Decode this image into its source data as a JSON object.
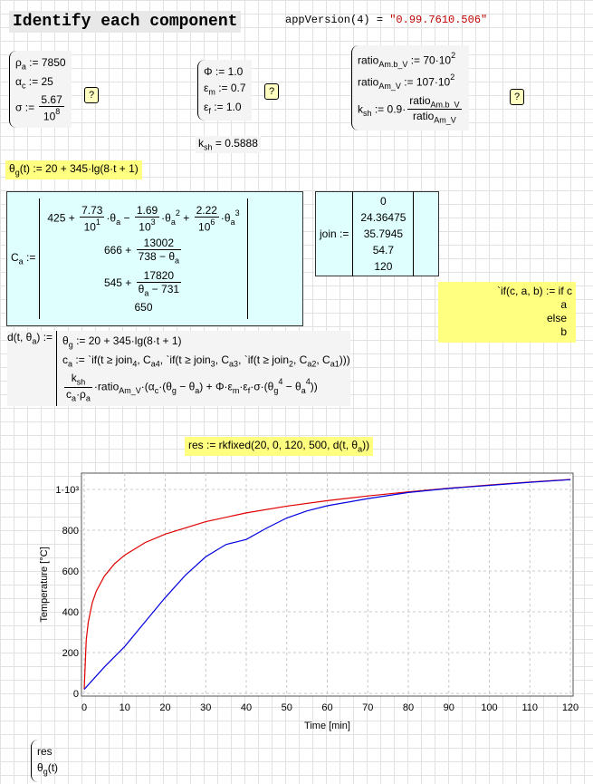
{
  "title": "Identify each component",
  "app_version": {
    "call": "appVersion(4) = ",
    "value": "\"0.99.7610.506\""
  },
  "help": "?",
  "block1": {
    "lines": [
      [
        "ρ",
        {
          "sub": [
            "a"
          ]
        },
        " := 7850"
      ],
      [
        "α",
        {
          "sub": [
            "c"
          ]
        },
        " := 25"
      ],
      [
        "σ := ",
        {
          "frac": {
            "num": [
              "5.67"
            ],
            "den": [
              "10",
              {
                "sup": [
                  "8"
                ]
              }
            ]
          }
        }
      ]
    ]
  },
  "block2": {
    "lines": [
      [
        "Φ := 1.0"
      ],
      [
        "ε",
        {
          "sub": [
            "m"
          ]
        },
        " := 0.7"
      ],
      [
        "ε",
        {
          "sub": [
            "f"
          ]
        },
        " := 1.0"
      ]
    ]
  },
  "k_sh_result": [
    "k",
    {
      "sub": [
        "sh"
      ]
    },
    " = 0.5888"
  ],
  "block3": {
    "lines": [
      [
        "ratio",
        {
          "sub": [
            "Am.b_V"
          ]
        },
        " := 70·10",
        {
          "sup": [
            "2"
          ]
        }
      ],
      [
        "ratio",
        {
          "sub": [
            "Am_V"
          ]
        },
        " := 107·10",
        {
          "sup": [
            "2"
          ]
        }
      ],
      [
        "k",
        {
          "sub": [
            "sh"
          ]
        },
        " := 0.9·",
        {
          "frac": {
            "num": [
              "ratio",
              {
                "sub": [
                  "Am.b_V"
                ]
              }
            ],
            "den": [
              "ratio",
              {
                "sub": [
                  "Am_V"
                ]
              }
            ]
          }
        }
      ]
    ]
  },
  "theta_g": [
    "θ",
    {
      "sub": [
        "g"
      ]
    },
    "(t) := 20 + 345·lg(8·t + 1)"
  ],
  "c_a": {
    "label": [
      "C",
      {
        "sub": [
          "a"
        ]
      },
      " :="
    ],
    "entries": [
      [
        "425 + ",
        {
          "frac": {
            "num": [
              "7.73"
            ],
            "den": [
              "10",
              {
                "sup": [
                  "1"
                ]
              }
            ]
          }
        },
        "·θ",
        {
          "sub": [
            "a"
          ]
        },
        " − ",
        {
          "frac": {
            "num": [
              "1.69"
            ],
            "den": [
              "10",
              {
                "sup": [
                  "3"
                ]
              }
            ]
          }
        },
        "·θ",
        {
          "sub": [
            "a"
          ]
        },
        {
          "sup": [
            "2"
          ]
        },
        " + ",
        {
          "frac": {
            "num": [
              "2.22"
            ],
            "den": [
              "10",
              {
                "sup": [
                  "6"
                ]
              }
            ]
          }
        },
        "·θ",
        {
          "sub": [
            "a"
          ]
        },
        {
          "sup": [
            "3"
          ]
        }
      ],
      [
        "666 + ",
        {
          "frac": {
            "num": [
              "13002"
            ],
            "den": [
              "738 − θ",
              {
                "sub": [
                  "a"
                ]
              }
            ]
          }
        }
      ],
      [
        "545 + ",
        {
          "frac": {
            "num": [
              "17820"
            ],
            "den": [
              "θ",
              {
                "sub": [
                  "a"
                ]
              },
              " − 731"
            ]
          }
        }
      ],
      [
        "650"
      ]
    ]
  },
  "join": {
    "label": "join :=",
    "entries": [
      "0",
      "24.36475",
      "35.7945",
      "54.7",
      "120"
    ]
  },
  "if_def": {
    "lines": [
      "`if(c, a, b) := if  c",
      "a",
      "else",
      "b"
    ]
  },
  "d_def": {
    "head": [
      "d(t, θ",
      {
        "sub": [
          "a"
        ]
      },
      ") :="
    ],
    "lines": [
      [
        "θ",
        {
          "sub": [
            "g"
          ]
        },
        " := 20 + 345·lg(8·t + 1)"
      ],
      [
        "c",
        {
          "sub": [
            "a"
          ]
        },
        " := `if(t ≥ join",
        {
          "sub": [
            "4"
          ]
        },
        ", C",
        {
          "sub": [
            "a"
          ]
        },
        {
          "sub": [
            "4"
          ]
        },
        ", `if(t ≥ join",
        {
          "sub": [
            "3"
          ]
        },
        ", C",
        {
          "sub": [
            "a"
          ]
        },
        {
          "sub": [
            "3"
          ]
        },
        ", `if(t ≥ join",
        {
          "sub": [
            "2"
          ]
        },
        ", C",
        {
          "sub": [
            "a"
          ]
        },
        {
          "sub": [
            "2"
          ]
        },
        ", C",
        {
          "sub": [
            "a"
          ]
        },
        {
          "sub": [
            "1"
          ]
        },
        ")))"
      ],
      [
        {
          "frac": {
            "num": [
              "k",
              {
                "sub": [
                  "sh"
                ]
              }
            ],
            "den": [
              "c",
              {
                "sub": [
                  "a"
                ]
              },
              "·ρ",
              {
                "sub": [
                  "a"
                ]
              }
            ]
          }
        },
        "·ratio",
        {
          "sub": [
            "Am_V"
          ]
        },
        "·(α",
        {
          "sub": [
            "c"
          ]
        },
        "·(θ",
        {
          "sub": [
            "g"
          ]
        },
        " − θ",
        {
          "sub": [
            "a"
          ]
        },
        ") + Φ·ε",
        {
          "sub": [
            "m"
          ]
        },
        "·ε",
        {
          "sub": [
            "f"
          ]
        },
        "·σ·(θ",
        {
          "sub": [
            "g"
          ]
        },
        {
          "sup": [
            "4"
          ]
        },
        " − θ",
        {
          "sub": [
            "a"
          ]
        },
        {
          "sup": [
            "4"
          ]
        },
        "))"
      ]
    ]
  },
  "res": [
    "res := rkfixed(20, 0, 120, 500, d(t, θ",
    {
      "sub": [
        "a"
      ]
    },
    "))"
  ],
  "bottom": {
    "lines": [
      [
        "res"
      ],
      [
        "θ",
        {
          "sub": [
            "g"
          ]
        },
        "(t)"
      ]
    ]
  },
  "chart_data": {
    "type": "line",
    "x_label": "Time [min]",
    "y_label": "Temperature [°C]",
    "xlim": [
      0,
      120
    ],
    "ylim": [
      -13,
      1080
    ],
    "xticks": [
      0,
      10,
      20,
      30,
      40,
      50,
      60,
      70,
      80,
      90,
      100,
      110,
      120
    ],
    "yticks": [
      0,
      200,
      400,
      600,
      800,
      {
        "value": 1000,
        "label": "1·10³"
      }
    ],
    "grid": true,
    "series": [
      {
        "color": "#e00000",
        "x": [
          0,
          0.5,
          1,
          2,
          3,
          5,
          7.5,
          10,
          15,
          20,
          30,
          40,
          50,
          60,
          70,
          80,
          90,
          100,
          110,
          120
        ],
        "values": [
          20,
          261,
          349,
          445,
          502,
          576,
          636,
          678,
          739,
          781,
          842,
          885,
          918,
          945,
          968,
          988,
          1006,
          1022,
          1036,
          1049
        ]
      },
      {
        "color": "#0000e0",
        "x": [
          0,
          5,
          10,
          15,
          20,
          25,
          30,
          35,
          38,
          40,
          45,
          50,
          55,
          60,
          70,
          80,
          90,
          100,
          110,
          120
        ],
        "values": [
          20,
          130,
          230,
          350,
          470,
          580,
          670,
          730,
          745,
          755,
          810,
          860,
          895,
          920,
          955,
          985,
          1005,
          1020,
          1035,
          1048
        ]
      }
    ]
  }
}
